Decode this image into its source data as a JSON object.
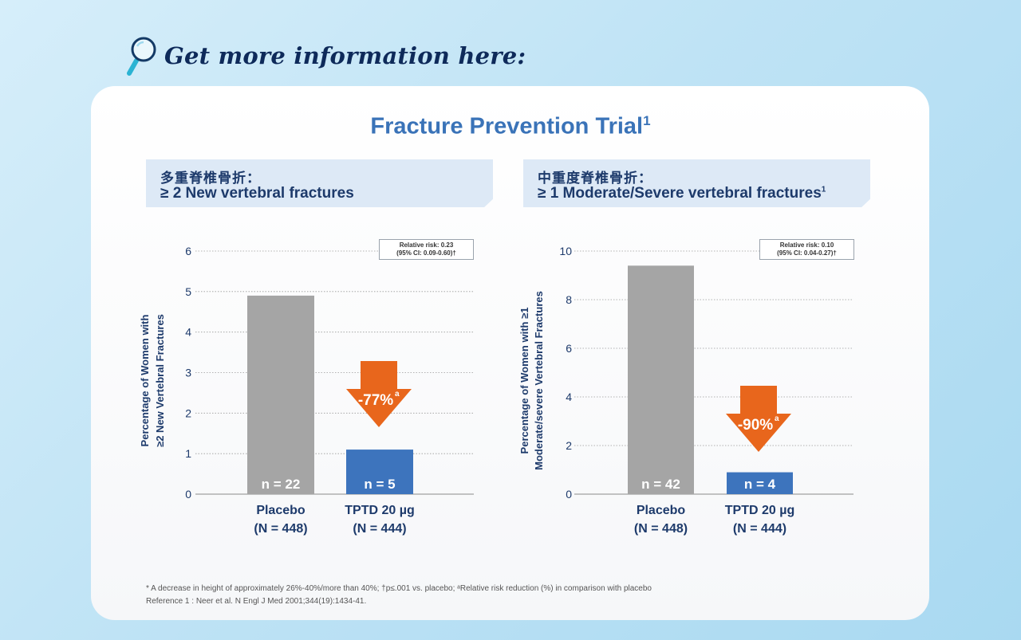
{
  "header": {
    "text": "Get more information here:"
  },
  "title": {
    "text": "Fracture Prevention Trial",
    "sup": "1"
  },
  "colors": {
    "placebo": "#a5a5a5",
    "tptd": "#3d74bd",
    "arrow": "#e8661c",
    "axis_text": "#1d3a6b"
  },
  "icons": {
    "header": "magnifier-icon"
  },
  "panels": [
    {
      "subtitle_zh": "多重脊椎骨折：",
      "subtitle_en": "≥ 2 New vertebral fractures",
      "subtitle_en_sup": "",
      "relative_risk_line1": "Relative risk: 0.23",
      "relative_risk_line2": "(95% CI: 0.09-0.60)†",
      "ylabel_line1": "Percentage of Women with",
      "ylabel_line2": "≥2 New Vertebral Fractures",
      "reduction": "-77%",
      "reduction_sup": "a",
      "bars": [
        {
          "n_label": "n = 22",
          "label_line1": "Placebo",
          "label_line2": "(N = 448)"
        },
        {
          "n_label": "n = 5",
          "label_line1": "TPTD 20 µg",
          "label_line2": "(N = 444)"
        }
      ]
    },
    {
      "subtitle_zh": "中重度脊椎骨折：",
      "subtitle_en": "≥ 1 Moderate/Severe vertebral fractures",
      "subtitle_en_sup": "1",
      "relative_risk_line1": "Relative risk: 0.10",
      "relative_risk_line2": "(95% CI: 0.04-0.27)†",
      "ylabel_line1": "Percentage of Women with ≥1",
      "ylabel_line2": "Moderate/severe Vertebral Fractures",
      "reduction": "-90%",
      "reduction_sup": "a",
      "bars": [
        {
          "n_label": "n = 42",
          "label_line1": "Placebo",
          "label_line2": "(N = 448)"
        },
        {
          "n_label": "n = 4",
          "label_line1": "TPTD 20 µg",
          "label_line2": "(N = 444)"
        }
      ]
    }
  ],
  "chart_data": [
    {
      "type": "bar",
      "categories": [
        "Placebo (N = 448)",
        "TPTD 20 µg (N = 444)"
      ],
      "values": [
        4.9,
        1.1
      ],
      "ylim": [
        0,
        6
      ],
      "yticks": [
        0,
        1,
        2,
        3,
        4,
        5,
        6
      ],
      "ylabel": "Percentage of Women with ≥2 New Vertebral Fractures",
      "grid": true
    },
    {
      "type": "bar",
      "categories": [
        "Placebo (N = 448)",
        "TPTD 20 µg (N = 444)"
      ],
      "values": [
        9.4,
        0.9
      ],
      "ylim": [
        0,
        10
      ],
      "yticks": [
        0,
        2,
        4,
        6,
        8,
        10
      ],
      "ylabel": "Percentage of Women with ≥1 Moderate/severe Vertebral Fractures",
      "grid": true
    }
  ],
  "footnote": "* A decrease in height of approximately 26%-40%/more than 40%; †p≤.001 vs. placebo; ᵃRelative risk reduction (%) in comparison with placebo",
  "reference": "Reference 1 : Neer et al. N Engl J Med 2001;344(19):1434-41."
}
